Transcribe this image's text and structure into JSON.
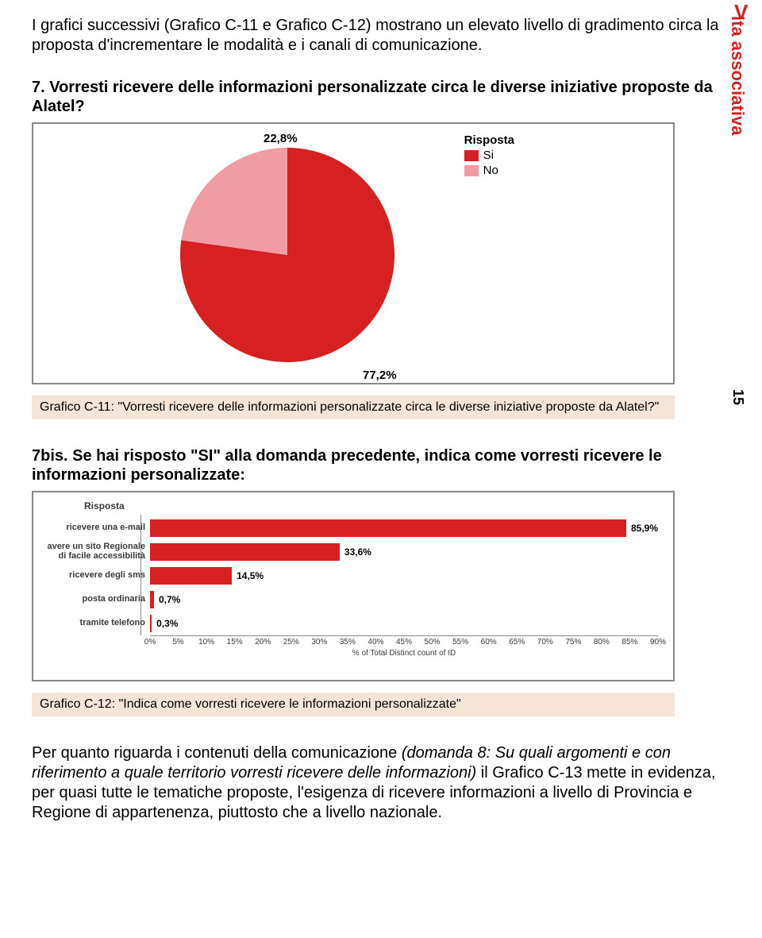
{
  "side_label_v": "V",
  "side_label_rest": "ita associativa",
  "page_number": "15",
  "intro": "I grafici successivi (Grafico C-11 e Grafico C-12) mostrano un elevato livello di gradimento circa la proposta d'incrementare le modalità e i canali di comunicazione.",
  "q7": {
    "title": "7. Vorresti ricevere delle informazioni personalizzate circa le diverse iniziative proposte da Alatel?",
    "pie": {
      "si_pct": 77.2,
      "no_pct": 22.8,
      "si_label": "77,2%",
      "no_label": "22,8%",
      "si_color": "#d62021",
      "no_color": "#f19ba3",
      "legend_title": "Risposta",
      "legend_si": "Si",
      "legend_no": "No"
    },
    "caption": "Grafico C-11: \"Vorresti ricevere delle informazioni personalizzate circa le diverse iniziative proposte da Alatel?\""
  },
  "q7bis": {
    "title": "7bis. Se hai risposto \"SI\" alla domanda precedente, indica come vorresti ricevere le informazioni personalizzate:",
    "risposta_label": "Risposta",
    "bars": {
      "type": "bar",
      "xmax": 90,
      "xtick_step": 5,
      "bar_color": "#d62021",
      "x_title": "% of Total Distinct count of ID",
      "items": [
        {
          "label": "ricevere una e-mail",
          "value": 85.9,
          "disp": "85,9%"
        },
        {
          "label": "avere un sito Regionale di facile accessibilità",
          "value": 33.6,
          "disp": "33,6%"
        },
        {
          "label": "ricevere degli sms",
          "value": 14.5,
          "disp": "14,5%"
        },
        {
          "label": "posta ordinaria",
          "value": 0.7,
          "disp": "0,7%"
        },
        {
          "label": "tramite telefono",
          "value": 0.3,
          "disp": "0,3%"
        }
      ]
    },
    "caption": "Grafico C-12: \"Indica come vorresti ricevere le informazioni personalizzate\""
  },
  "closing_pre": "Per quanto riguarda i contenuti della comunicazione ",
  "closing_ital": "(domanda 8: Su quali argomenti e con riferimento a quale territorio vorresti ricevere delle informazioni)",
  "closing_post": " il Grafico C-13 mette in evidenza, per quasi tutte le tematiche proposte, l'esigenza di ricevere informazioni a livello di Provincia e Regione di appartenenza, piuttosto che a livello nazionale."
}
